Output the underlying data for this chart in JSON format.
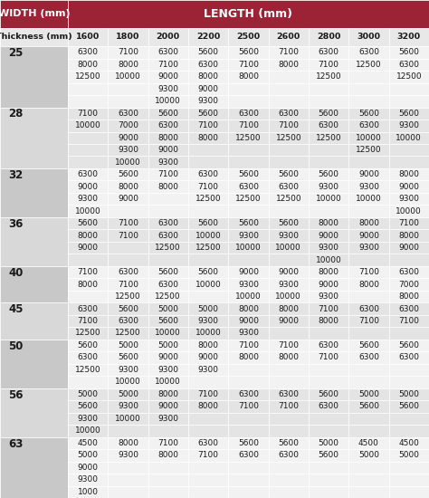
{
  "title_left": "WIDTH (mm)",
  "title_right": "LENGTH (mm)",
  "col_header": [
    "Thickness (mm)",
    "1600",
    "1800",
    "2000",
    "2200",
    "2500",
    "2600",
    "2800",
    "3000",
    "3200"
  ],
  "rows": [
    {
      "thickness": "25",
      "data": [
        [
          "6300",
          "7100",
          "6300",
          "5600",
          "5600",
          "7100",
          "6300",
          "6300",
          "5600"
        ],
        [
          "8000",
          "8000",
          "7100",
          "6300",
          "7100",
          "8000",
          "7100",
          "12500",
          "6300"
        ],
        [
          "12500",
          "10000",
          "9000",
          "8000",
          "8000",
          "",
          "12500",
          "",
          "12500"
        ],
        [
          "",
          "",
          "9300",
          "9000",
          "",
          "",
          "",
          "",
          ""
        ],
        [
          "",
          "",
          "10000",
          "9300",
          "",
          "",
          "",
          "",
          ""
        ]
      ]
    },
    {
      "thickness": "28",
      "data": [
        [
          "7100",
          "6300",
          "5600",
          "5600",
          "6300",
          "6300",
          "5600",
          "5600",
          "5600"
        ],
        [
          "10000",
          "7000",
          "6300",
          "7100",
          "7100",
          "7100",
          "6300",
          "6300",
          "9300"
        ],
        [
          "",
          "9000",
          "8000",
          "8000",
          "12500",
          "12500",
          "12500",
          "10000",
          "10000"
        ],
        [
          "",
          "9300",
          "9000",
          "",
          "",
          "",
          "",
          "12500",
          ""
        ],
        [
          "",
          "10000",
          "9300",
          "",
          "",
          "",
          "",
          "",
          ""
        ]
      ]
    },
    {
      "thickness": "32",
      "data": [
        [
          "6300",
          "5600",
          "7100",
          "6300",
          "5600",
          "5600",
          "5600",
          "9000",
          "8000"
        ],
        [
          "9000",
          "8000",
          "8000",
          "7100",
          "6300",
          "6300",
          "9300",
          "9300",
          "9000"
        ],
        [
          "9300",
          "9000",
          "",
          "12500",
          "12500",
          "12500",
          "10000",
          "10000",
          "9300"
        ],
        [
          "10000",
          "",
          "",
          "",
          "",
          "",
          "",
          "",
          "10000"
        ]
      ]
    },
    {
      "thickness": "36",
      "data": [
        [
          "5600",
          "7100",
          "6300",
          "5600",
          "5600",
          "5600",
          "8000",
          "8000",
          "7100"
        ],
        [
          "8000",
          "7100",
          "6300",
          "10000",
          "9300",
          "9300",
          "9000",
          "9000",
          "8000"
        ],
        [
          "9000",
          "",
          "12500",
          "12500",
          "10000",
          "10000",
          "9300",
          "9300",
          "9000"
        ],
        [
          "",
          "",
          "",
          "",
          "",
          "",
          "10000",
          "",
          ""
        ]
      ]
    },
    {
      "thickness": "40",
      "data": [
        [
          "7100",
          "6300",
          "5600",
          "5600",
          "9000",
          "9000",
          "8000",
          "7100",
          "6300"
        ],
        [
          "8000",
          "7100",
          "6300",
          "10000",
          "9300",
          "9300",
          "9000",
          "8000",
          "7000"
        ],
        [
          "",
          "12500",
          "12500",
          "",
          "10000",
          "10000",
          "9300",
          "",
          "8000"
        ]
      ]
    },
    {
      "thickness": "45",
      "data": [
        [
          "6300",
          "5600",
          "5000",
          "5000",
          "8000",
          "8000",
          "7100",
          "6300",
          "6300"
        ],
        [
          "7100",
          "6300",
          "5600",
          "9300",
          "9000",
          "9000",
          "8000",
          "7100",
          "7100"
        ],
        [
          "12500",
          "12500",
          "10000",
          "10000",
          "9300",
          "",
          "",
          "",
          ""
        ]
      ]
    },
    {
      "thickness": "50",
      "data": [
        [
          "5600",
          "5000",
          "5000",
          "8000",
          "7100",
          "7100",
          "6300",
          "5600",
          "5600"
        ],
        [
          "6300",
          "5600",
          "9000",
          "9000",
          "8000",
          "8000",
          "7100",
          "6300",
          "6300"
        ],
        [
          "12500",
          "9300",
          "9300",
          "9300",
          "",
          "",
          "",
          "",
          ""
        ],
        [
          "",
          "10000",
          "10000",
          "",
          "",
          "",
          "",
          "",
          ""
        ]
      ]
    },
    {
      "thickness": "56",
      "data": [
        [
          "5000",
          "5000",
          "8000",
          "7100",
          "6300",
          "6300",
          "5600",
          "5000",
          "5000"
        ],
        [
          "5600",
          "9300",
          "9000",
          "8000",
          "7100",
          "7100",
          "6300",
          "5600",
          "5600"
        ],
        [
          "9300",
          "10000",
          "9300",
          "",
          "",
          "",
          "",
          "",
          ""
        ],
        [
          "10000",
          "",
          "",
          "",
          "",
          "",
          "",
          "",
          ""
        ]
      ]
    },
    {
      "thickness": "63",
      "data": [
        [
          "4500",
          "8000",
          "7100",
          "6300",
          "5600",
          "5600",
          "5000",
          "4500",
          "4500"
        ],
        [
          "5000",
          "9300",
          "8000",
          "7100",
          "6300",
          "6300",
          "5600",
          "5000",
          "5000"
        ],
        [
          "9000",
          "",
          "",
          "",
          "",
          "",
          "",
          "",
          ""
        ],
        [
          "9300",
          "",
          "",
          "",
          "",
          "",
          "",
          "",
          ""
        ],
        [
          "1000",
          "",
          "",
          "",
          "",
          "",
          "",
          "",
          ""
        ]
      ]
    }
  ],
  "header_bg": "#9b2335",
  "header_text": "#ffffff",
  "subheader_bg": "#e8e8e8",
  "subheader_text": "#1a1a1a",
  "thickness_bg_light": "#d8d8d8",
  "thickness_bg_dark": "#c8c8c8",
  "thickness_text": "#1a1a1a",
  "cell_bg_odd": "#f2f2f2",
  "cell_bg_even": "#e4e4e4",
  "cell_text": "#1a1a1a",
  "grid_color": "#ffffff",
  "figsize": [
    4.74,
    5.5
  ],
  "dpi": 100
}
